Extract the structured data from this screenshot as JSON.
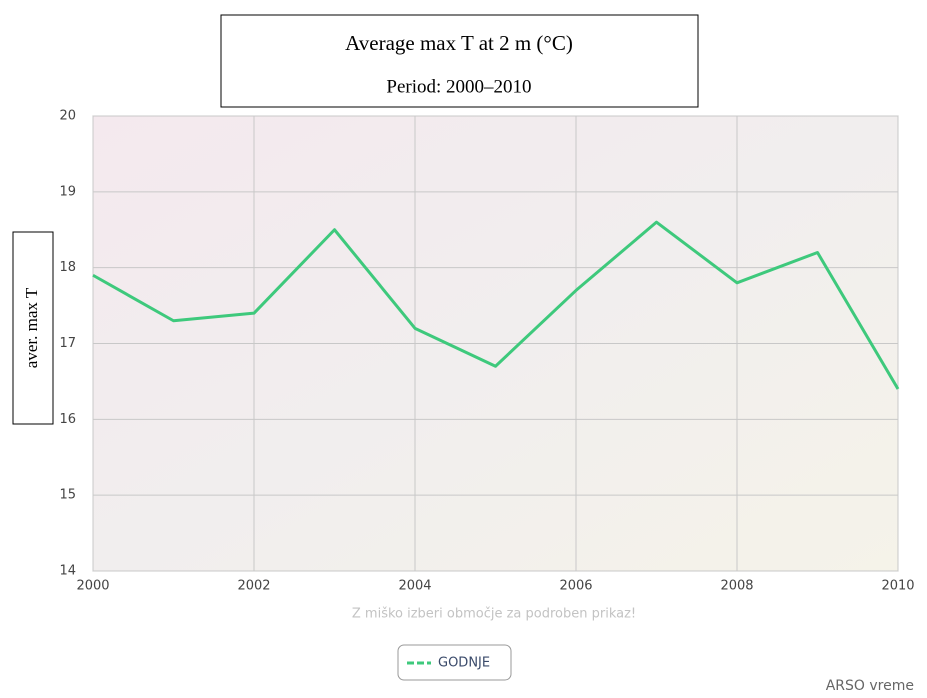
{
  "chart_data": {
    "type": "line",
    "title": "Average max T at 2 m (°C)",
    "subtitle": "Period: 2000–2010",
    "y_label": "aver. max T",
    "x_label": "Z miško izberi območje za podroben prikaz!",
    "credit": "ARSO vreme",
    "x": [
      2000,
      2001,
      2002,
      2003,
      2004,
      2005,
      2006,
      2007,
      2008,
      2009,
      2010
    ],
    "series": [
      {
        "name": "GODNJE",
        "color": "#3ec97c",
        "values": [
          17.9,
          17.3,
          17.4,
          18.5,
          17.2,
          16.7,
          17.7,
          18.6,
          17.8,
          18.2,
          16.4
        ]
      }
    ],
    "xlim": [
      2000,
      2010
    ],
    "xticks": [
      2000,
      2002,
      2004,
      2006,
      2008,
      2010
    ],
    "ylim": [
      14,
      20
    ],
    "yticks": [
      14,
      15,
      16,
      17,
      18,
      19,
      20
    ],
    "grid": true,
    "legend": "bottom"
  }
}
